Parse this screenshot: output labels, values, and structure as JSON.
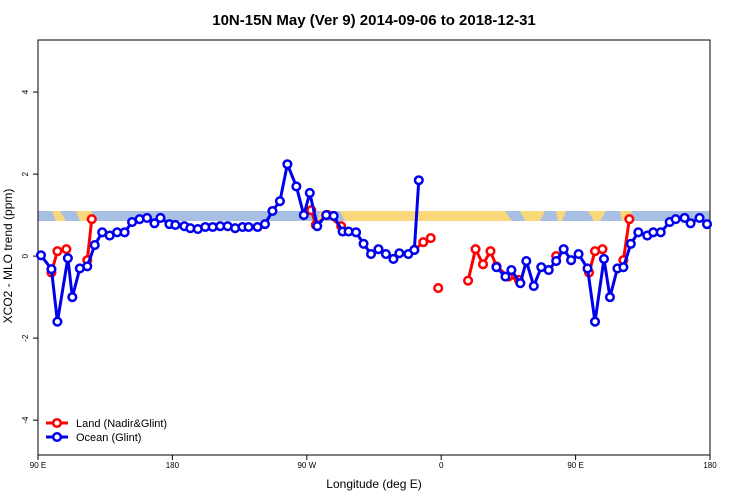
{
  "chart_data": {
    "type": "line",
    "title": "10N-15N May (Ver 9)   2014-09-06 to 2018-12-31",
    "xlabel": "Longitude (deg E)",
    "ylabel": "XCO2 - MLO trend (ppm)",
    "xlim": [
      90,
      540
    ],
    "ylim": [
      -4.85,
      5.27
    ],
    "xticks": [
      {
        "value": 90,
        "label": "90 E"
      },
      180,
      {
        "value": 270,
        "label": "90 W"
      },
      {
        "value": 360,
        "label": "0"
      },
      {
        "value": 450,
        "label": "90 E"
      },
      {
        "value": 540,
        "label": "180"
      }
    ],
    "yticks": [
      -4,
      -2,
      0,
      2,
      4
    ],
    "legend": "bottom-left",
    "series": [
      {
        "name": "Land (Nadir&Glint)",
        "color": "#ff0000",
        "x": [
          99,
          103,
          109,
          116,
          123,
          126,
          200,
          273,
          276,
          284,
          293,
          320,
          342,
          348,
          353,
          356,
          358,
          368,
          378,
          383,
          388,
          393,
          397,
          405,
          412,
          425,
          437,
          450,
          459,
          463,
          468,
          475,
          482,
          486
        ],
        "values": [
          -0.4,
          0.12,
          0.17,
          null,
          -0.1,
          0.9,
          null,
          1.12,
          0.76,
          1.0,
          0.73,
          null,
          0.15,
          0.34,
          0.44,
          null,
          -0.78,
          null,
          -0.6,
          0.17,
          -0.2,
          0.12,
          -0.25,
          -0.5,
          -0.58,
          null,
          0.0,
          null,
          -0.4,
          0.12,
          0.17,
          null,
          -0.1,
          0.9
        ]
      },
      {
        "name": "Ocean (Glint)",
        "color": "#0000ee",
        "x": [
          92,
          99,
          103,
          110,
          113,
          118,
          123,
          128,
          133,
          138,
          143,
          148,
          153,
          158,
          163,
          168,
          172,
          178,
          182,
          188,
          192,
          197,
          202,
          207,
          212,
          217,
          222,
          227,
          231,
          237,
          242,
          247,
          252,
          257,
          263,
          268,
          272,
          277,
          283,
          288,
          294,
          298,
          303,
          308,
          313,
          318,
          323,
          328,
          332,
          338,
          342,
          345,
          370,
          397,
          403,
          407,
          413,
          417,
          422,
          427,
          432,
          437,
          442,
          447,
          452,
          458,
          463,
          469,
          473,
          478,
          482,
          487,
          492,
          498,
          502,
          507,
          513,
          517,
          523,
          527,
          533,
          538
        ],
        "values": [
          0.02,
          -0.32,
          -1.6,
          -0.05,
          -1.0,
          -0.3,
          -0.25,
          0.27,
          0.58,
          0.5,
          0.58,
          0.58,
          0.83,
          0.9,
          0.93,
          0.8,
          0.93,
          0.78,
          0.76,
          0.73,
          0.68,
          0.66,
          0.71,
          0.71,
          0.73,
          0.73,
          0.68,
          0.71,
          0.71,
          0.71,
          0.78,
          1.1,
          1.34,
          2.24,
          1.7,
          1.0,
          1.54,
          0.73,
          1.0,
          0.98,
          0.6,
          0.6,
          0.58,
          0.3,
          0.05,
          0.17,
          0.05,
          -0.07,
          0.07,
          0.05,
          0.15,
          1.85,
          null,
          -0.27,
          -0.5,
          -0.34,
          -0.66,
          -0.12,
          -0.73,
          -0.27,
          -0.34,
          -0.12,
          0.17,
          -0.1,
          0.05,
          -0.3,
          -1.6,
          -0.07,
          -1.0,
          -0.3,
          -0.27,
          0.3,
          0.58,
          0.5,
          0.58,
          0.58,
          0.83,
          0.9,
          0.93,
          0.8,
          0.93,
          0.78
        ]
      }
    ]
  }
}
